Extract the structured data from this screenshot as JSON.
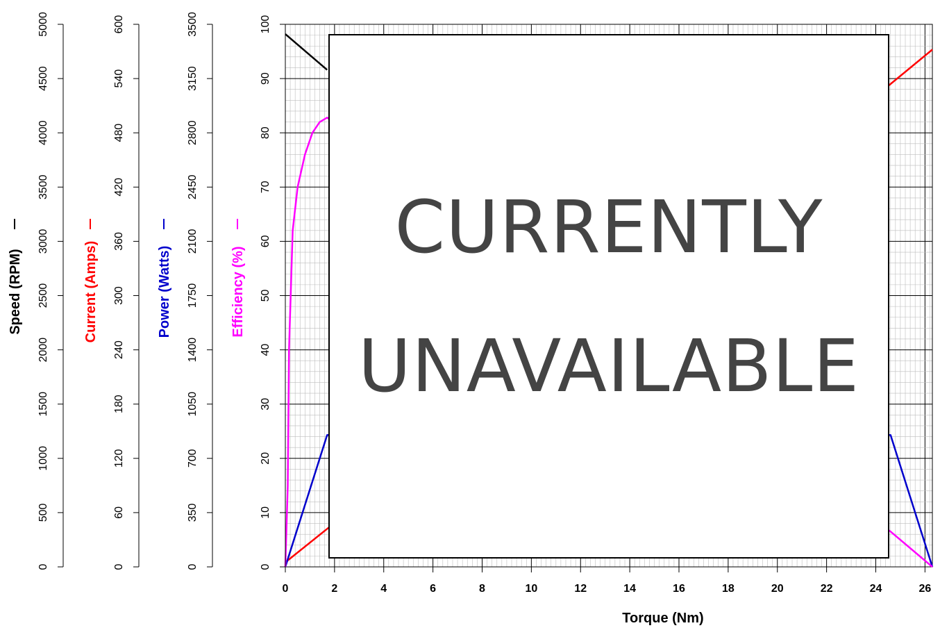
{
  "chart_data": {
    "type": "line",
    "xlabel": "Torque (Nm)",
    "xlim": [
      0,
      26.3
    ],
    "x_ticks": [
      "0",
      "2",
      "4",
      "6",
      "8",
      "10",
      "12",
      "14",
      "16",
      "18",
      "20",
      "22",
      "24",
      "26"
    ],
    "axes": [
      {
        "label": "Speed (RPM)",
        "color": "#000000",
        "ticks": [
          "0",
          "500",
          "1000",
          "1500",
          "2000",
          "2500",
          "3000",
          "3500",
          "4000",
          "4500",
          "5000"
        ],
        "ylim": [
          0,
          5000
        ]
      },
      {
        "label": "Current (Amps)",
        "color": "#ff0000",
        "ticks": [
          "0",
          "60",
          "120",
          "180",
          "240",
          "300",
          "360",
          "420",
          "480",
          "540",
          "600"
        ],
        "ylim": [
          0,
          600
        ]
      },
      {
        "label": "Power (Watts)",
        "color": "#0000cc",
        "ticks": [
          "0",
          "350",
          "700",
          "1050",
          "1400",
          "1750",
          "2100",
          "2450",
          "2800",
          "3150",
          "3500"
        ],
        "ylim": [
          0,
          3500
        ]
      },
      {
        "label": "Efficiency (%)",
        "color": "#ff00ff",
        "ticks": [
          "0",
          "10",
          "20",
          "30",
          "40",
          "50",
          "60",
          "70",
          "80",
          "90",
          "100"
        ],
        "ylim": [
          0,
          100
        ]
      }
    ],
    "series": [
      {
        "axis": 0,
        "color": "#000000",
        "points": [
          [
            0,
            4910
          ],
          [
            1.7,
            4580
          ]
        ]
      },
      {
        "axis": 1,
        "color": "#ff0000",
        "points": [
          [
            0,
            5
          ],
          [
            1.7,
            42
          ],
          [
            24.6,
            534
          ],
          [
            26.3,
            572
          ]
        ]
      },
      {
        "axis": 2,
        "color": "#0000cc",
        "points": [
          [
            0,
            0
          ],
          [
            1.7,
            850
          ],
          [
            24.6,
            850
          ],
          [
            26.3,
            0
          ]
        ]
      },
      {
        "axis": 3,
        "color": "#ff00ff",
        "points": [
          [
            0,
            0
          ],
          [
            0.1,
            15
          ],
          [
            0.15,
            40
          ],
          [
            0.3,
            62
          ],
          [
            0.5,
            70
          ],
          [
            0.8,
            76
          ],
          [
            1.1,
            80
          ],
          [
            1.4,
            82
          ],
          [
            1.7,
            82.8
          ],
          [
            24.6,
            6.5
          ],
          [
            26.3,
            0
          ]
        ]
      }
    ],
    "grid": true
  },
  "overlay": {
    "line1": "CURRENTLY",
    "line2": "UNAVAILABLE"
  }
}
